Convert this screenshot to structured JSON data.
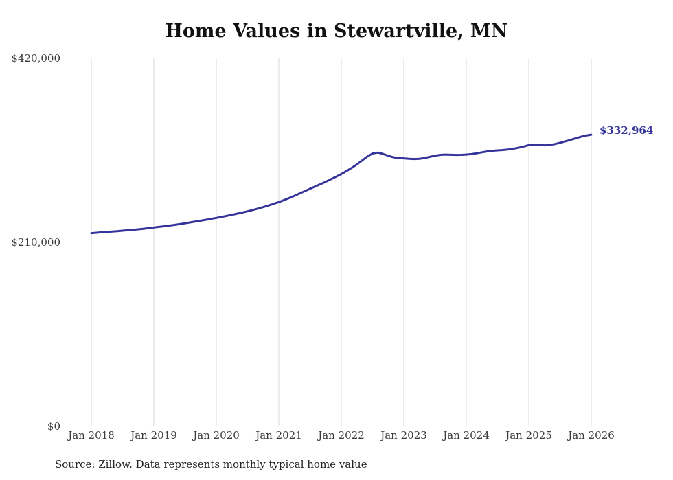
{
  "page": {
    "source_note": "Source: Zillow. Data represents monthly typical home value"
  },
  "chart_data": {
    "type": "line",
    "title": "Home Values in Stewartville, MN",
    "series_name": "Monthly typical home value",
    "frequency": "monthly",
    "x_start": "2018-01",
    "x_end": "2026-01",
    "x_tick_labels": [
      "Jan 2018",
      "Jan 2019",
      "Jan 2020",
      "Jan 2021",
      "Jan 2022",
      "Jan 2023",
      "Jan 2024",
      "Jan 2025",
      "Jan 2026"
    ],
    "y_ticks": [
      {
        "value": 420000,
        "label": "$420,000"
      },
      {
        "value": 210000,
        "label": "$210,000"
      },
      {
        "value": 0,
        "label": "$0"
      }
    ],
    "ylim": [
      0,
      420000
    ],
    "end_label": "$332,964",
    "end_value": 332964,
    "line_color": "#35349B",
    "grid_color": "#D9D9D9",
    "legend": "none",
    "values": [
      220500,
      221000,
      221500,
      221900,
      222400,
      222800,
      223300,
      223800,
      224300,
      224900,
      225500,
      226200,
      227000,
      227700,
      228400,
      229200,
      230000,
      230900,
      231800,
      232800,
      233800,
      234800,
      235800,
      236900,
      238000,
      239100,
      240300,
      241500,
      242800,
      244100,
      245500,
      247000,
      248600,
      250300,
      252100,
      254000,
      256000,
      258300,
      260700,
      263200,
      265800,
      268500,
      271200,
      273900,
      276500,
      279200,
      282100,
      285000,
      288000,
      291400,
      295000,
      299000,
      303500,
      308000,
      311500,
      312500,
      311000,
      308800,
      307200,
      306300,
      305900,
      305400,
      305100,
      305400,
      306300,
      307600,
      309000,
      309900,
      310200,
      310000,
      309800,
      309900,
      310200,
      310800,
      311700,
      312800,
      313800,
      314500,
      315000,
      315400,
      316000,
      316900,
      318000,
      319400,
      321000,
      321600,
      321300,
      320800,
      321100,
      322200,
      323700,
      325300,
      327000,
      328700,
      330500,
      331900,
      332964
    ]
  }
}
